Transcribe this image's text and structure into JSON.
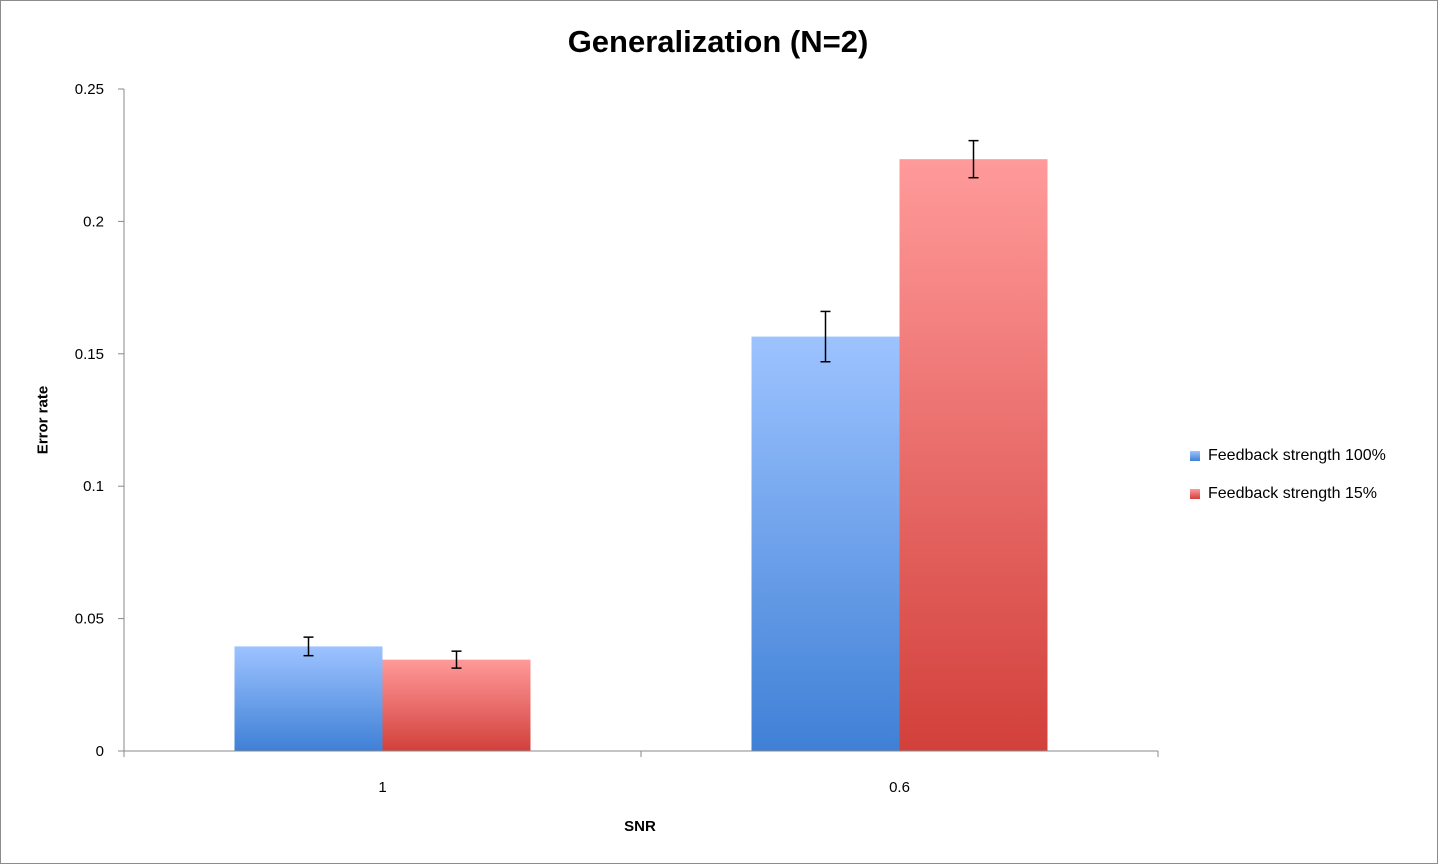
{
  "chart_data": {
    "type": "bar",
    "title": "Generalization (N=2)",
    "xlabel": "SNR",
    "ylabel": "Error rate",
    "categories": [
      "1",
      "0.6"
    ],
    "ylim": [
      0,
      0.25
    ],
    "yticks": [
      0,
      0.05,
      0.1,
      0.15,
      0.2,
      0.25
    ],
    "ytick_labels": [
      "0",
      "0.05",
      "0.1",
      "0.15",
      "0.2",
      "0.25"
    ],
    "grid": false,
    "legend_position": "right",
    "series": [
      {
        "name": "Feedback strength 100%",
        "values": [
          0.0395,
          0.1565
        ],
        "errors": [
          0.0035,
          0.0095
        ],
        "color_top": "#9dc3ff",
        "color_bottom": "#3f80d6"
      },
      {
        "name": "Feedback strength 15%",
        "values": [
          0.0345,
          0.2235
        ],
        "errors": [
          0.0032,
          0.007
        ],
        "color_top": "#ff9a9a",
        "color_bottom": "#d2403b"
      }
    ]
  }
}
